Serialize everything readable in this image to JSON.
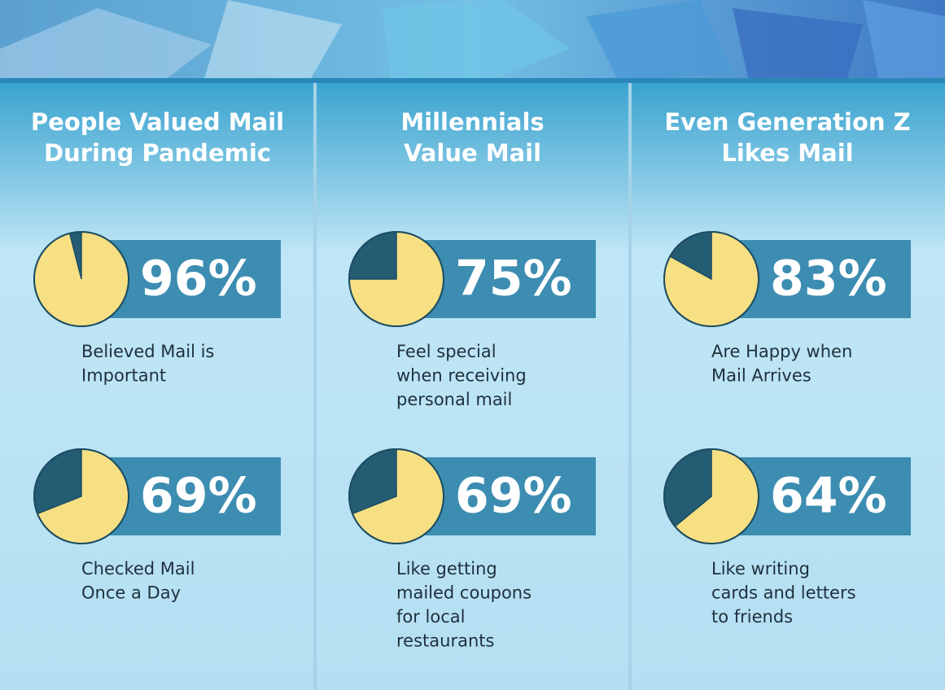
{
  "columns": [
    {
      "title": [
        "People Valued Mail",
        "During Pandemic"
      ],
      "stats": [
        {
          "value": 96,
          "value_label": "96%",
          "caption": [
            "Believed Mail is",
            "Important"
          ]
        },
        {
          "value": 69,
          "value_label": "69%",
          "caption": [
            "Checked Mail",
            "Once a Day"
          ]
        }
      ]
    },
    {
      "title": [
        "Millennials",
        "Value Mail"
      ],
      "stats": [
        {
          "value": 75,
          "value_label": "75%",
          "caption": [
            "Feel special",
            "when receiving",
            "personal mail"
          ]
        },
        {
          "value": 69,
          "value_label": "69%",
          "caption": [
            "Like getting",
            "mailed coupons",
            "for local",
            "restaurants"
          ]
        }
      ]
    },
    {
      "title": [
        "Even Generation Z",
        "Likes Mail"
      ],
      "stats": [
        {
          "value": 83,
          "value_label": "83%",
          "caption": [
            "Are Happy when",
            "Mail Arrives"
          ]
        },
        {
          "value": 64,
          "value_label": "64%",
          "caption": [
            "Like writing",
            "cards and letters",
            "to friends"
          ]
        }
      ]
    }
  ]
}
